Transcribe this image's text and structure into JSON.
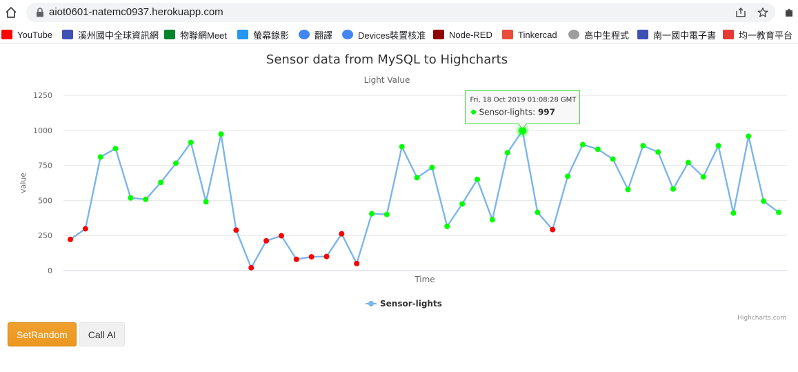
{
  "browser": {
    "url": "aiot0601-natemc0937.herokuapp.com",
    "icons": [
      "home-icon",
      "lock-icon",
      "share-icon",
      "star-icon",
      "puzzle-icon"
    ]
  },
  "bookmarks": [
    {
      "label": "YouTube",
      "icon": "youtube-icon",
      "color": "#ff0000"
    },
    {
      "label": "溪州國中全球資訊網",
      "icon": "site-icon",
      "color": "#3f51b5"
    },
    {
      "label": "物聯網Meet",
      "icon": "meet-icon",
      "color": "#00832d"
    },
    {
      "label": "螢幕錄影",
      "icon": "record-icon",
      "color": "#2196f3"
    },
    {
      "label": "翻譯",
      "icon": "google-icon",
      "color": "#4285f4"
    },
    {
      "label": "Devices裝置核准",
      "icon": "google-icon",
      "color": "#4285f4"
    },
    {
      "label": "Node-RED",
      "icon": "nodered-icon",
      "color": "#8f0000"
    },
    {
      "label": "Tinkercad",
      "icon": "tinkercad-icon",
      "color": "#e94c3d"
    },
    {
      "label": "高中生程式",
      "icon": "cloud-icon",
      "color": "#9e9e9e"
    },
    {
      "label": "南一國中電子書",
      "icon": "site-icon",
      "color": "#3f51b5"
    },
    {
      "label": "均一教育平台",
      "icon": "junyi-icon",
      "color": "#e53935"
    }
  ],
  "chart_data": {
    "type": "line",
    "title": "Sensor data from MySQL to Highcharts",
    "subtitle": "Light Value",
    "xlabel": "Time",
    "ylabel": "value",
    "ylim": [
      0,
      1250
    ],
    "yticks": [
      0,
      250,
      500,
      750,
      1000,
      1250
    ],
    "grid": true,
    "legend_position": "bottom-center",
    "credits": "Highcharts.com",
    "line_color": "#7cb5ec",
    "threshold": 300,
    "low_color": "#ff0000",
    "high_color": "#00ff00",
    "series": [
      {
        "name": "Sensor-lights",
        "values": [
          222,
          298,
          810,
          870,
          518,
          508,
          628,
          765,
          913,
          490,
          973,
          288,
          20,
          212,
          248,
          80,
          98,
          100,
          262,
          50,
          405,
          400,
          883,
          662,
          735,
          315,
          475,
          650,
          362,
          840,
          997,
          415,
          292,
          672,
          898,
          865,
          795,
          578,
          890,
          845,
          582,
          770,
          668,
          890,
          410,
          958,
          495,
          415
        ]
      }
    ],
    "tooltip": {
      "index": 30,
      "date": "Fri, 18 Oct 2019 01:08:28 GMT",
      "series": "Sensor-lights:",
      "value": "997"
    }
  },
  "buttons": {
    "set_random": "SetRandom",
    "call_ai": "Call AI"
  }
}
